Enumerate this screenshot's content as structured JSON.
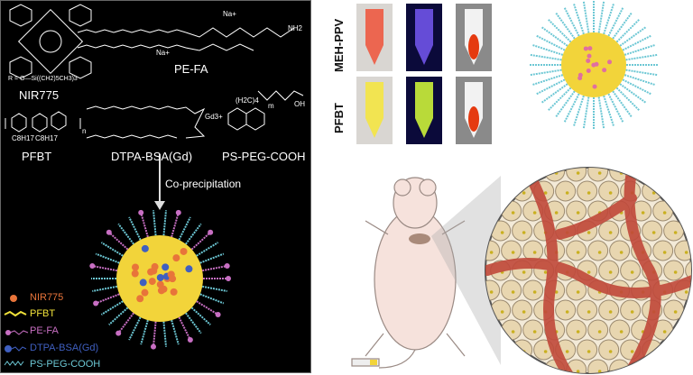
{
  "left_panel": {
    "molecules": {
      "nir775": "NIR775",
      "nir775_r": "R = O—Si((CH2)5CH3)3",
      "pe_fa": "PE-FA",
      "pfbt": "PFBT",
      "dtpa": "DTPA-BSA(Gd)",
      "pspeg": "PS-PEG-COOH"
    },
    "atoms": {
      "na1": "Na+",
      "na2": "Na+",
      "gd": "Gd3+",
      "nh2": "NH2",
      "oh": "OH",
      "c8h17a": "C8H17",
      "c8h17b": "C8H17",
      "n": "n",
      "m": "m",
      "ch2_4": "(H2C)4"
    },
    "process": "Co-precipitation",
    "legend": [
      {
        "label": "NIR775",
        "color": "#e8743a"
      },
      {
        "label": "PFBT",
        "color": "#f1e23a"
      },
      {
        "label": "PE-FA",
        "color": "#c86fc3"
      },
      {
        "label": "DTPA-BSA(Gd)",
        "color": "#3f5fc0"
      },
      {
        "label": "PS-PEG-COOH",
        "color": "#6cc7d4"
      }
    ]
  },
  "right_panel": {
    "tube_rows": [
      "MEH-PPV",
      "PFBT"
    ]
  },
  "colors": {
    "background_left": "#000000",
    "nanoparticle_core": "#f2d43a",
    "chains": "#7fd3dc",
    "vessel": "#c0493a",
    "cell": "#e8d6b0"
  }
}
